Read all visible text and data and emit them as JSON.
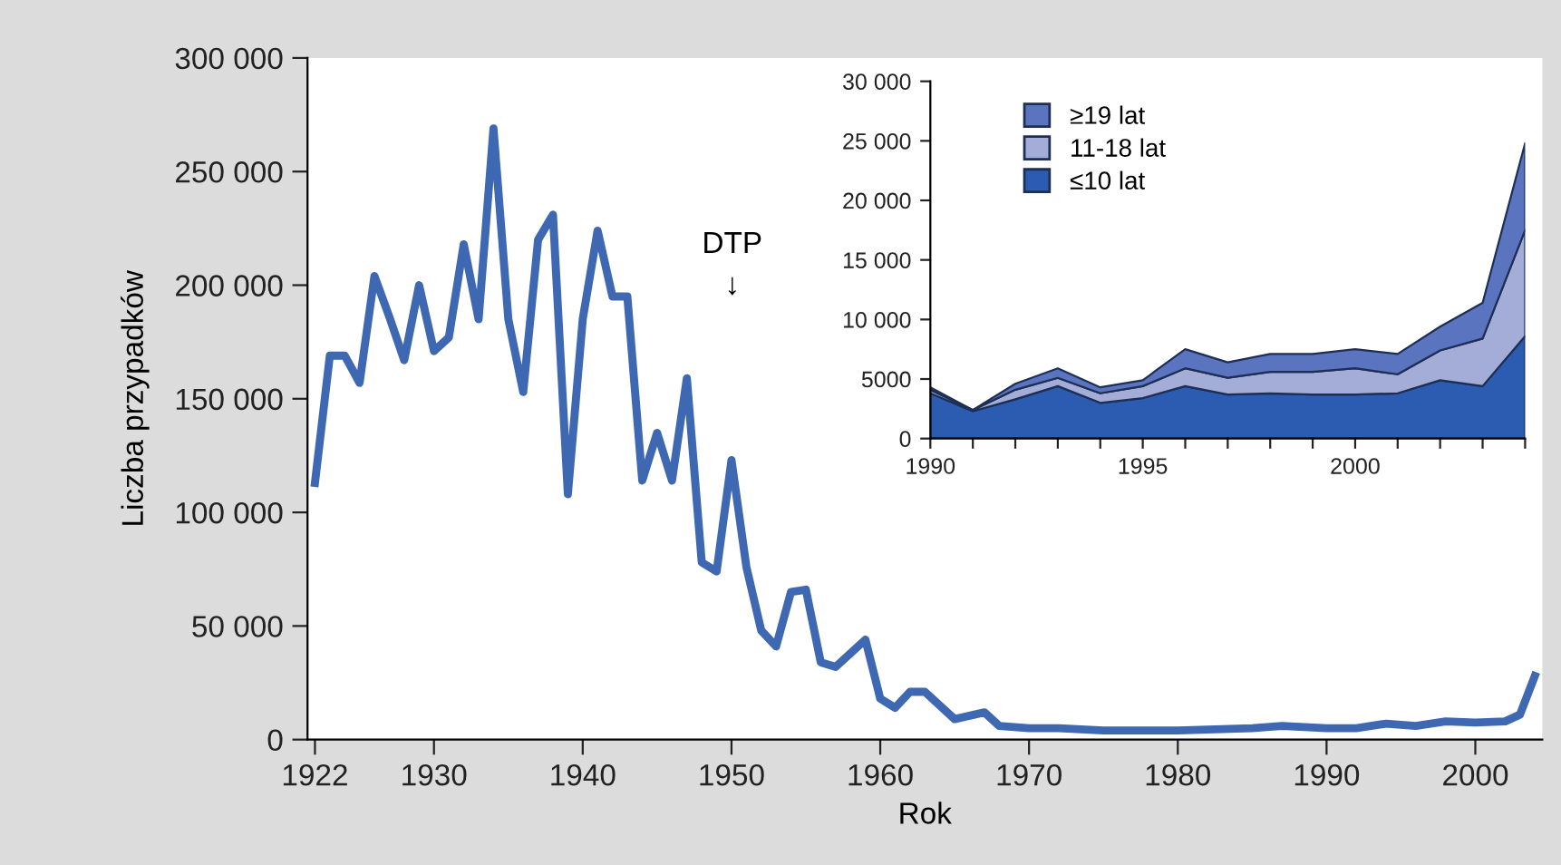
{
  "chart_data": [
    {
      "type": "line",
      "xlabel": "Rok",
      "ylabel": "Liczba przypadków",
      "grid": false,
      "legend": false,
      "marker": "none",
      "line_style": "solid",
      "xlim": [
        1921.5,
        2004.5
      ],
      "xticks": [
        1922,
        1930,
        1940,
        1950,
        1960,
        1970,
        1980,
        1990,
        2000
      ],
      "ylim": [
        0,
        300000
      ],
      "yticks": [
        {
          "value": 0,
          "label": "0"
        },
        {
          "value": 50000,
          "label": "50 000"
        },
        {
          "value": 100000,
          "label": "100 000"
        },
        {
          "value": 150000,
          "label": "150 000"
        },
        {
          "value": 200000,
          "label": "200 000"
        },
        {
          "value": 250000,
          "label": "250 000"
        },
        {
          "value": 300000,
          "label": "300 000"
        }
      ],
      "annotations": [
        "DTP\n↓"
      ],
      "series": [
        {
          "color": "#3f68b2",
          "x": [
            1922,
            1923,
            1924,
            1925,
            1926,
            1927,
            1928,
            1929,
            1930,
            1931,
            1932,
            1933,
            1934,
            1935,
            1936,
            1937,
            1938,
            1939,
            1940,
            1941,
            1942,
            1943,
            1944,
            1945,
            1946,
            1947,
            1948,
            1949,
            1950,
            1951,
            1952,
            1953,
            1954,
            1955,
            1956,
            1957,
            1959,
            1960,
            1961,
            1962,
            1963,
            1965,
            1967,
            1968,
            1970,
            1972,
            1975,
            1980,
            1985,
            1987,
            1990,
            1992,
            1994,
            1996,
            1998,
            2000,
            2002,
            2003,
            2004
          ],
          "values": [
            113000,
            169000,
            169000,
            157000,
            204000,
            186000,
            167000,
            200000,
            171000,
            177000,
            218000,
            185000,
            269000,
            185000,
            153000,
            220000,
            231000,
            108000,
            185000,
            224000,
            195000,
            195000,
            114000,
            135000,
            114000,
            159000,
            78000,
            74000,
            123000,
            76000,
            48000,
            41000,
            65000,
            66000,
            34000,
            32000,
            44000,
            18000,
            14000,
            21000,
            21000,
            9000,
            12000,
            6000,
            5000,
            5000,
            4000,
            4000,
            5000,
            6000,
            5000,
            5000,
            7000,
            6000,
            8000,
            7500,
            8000,
            11000,
            28000
          ]
        }
      ]
    },
    {
      "type": "area",
      "stacked": true,
      "grid": false,
      "legend": "top left",
      "x": [
        1990,
        1991,
        1992,
        1993,
        1994,
        1995,
        1996,
        1997,
        1998,
        1999,
        2000,
        2001,
        2002,
        2003,
        2004
      ],
      "xlim": [
        1990,
        2004
      ],
      "xticks": [
        1990,
        {
          "value": 1991,
          "label": null
        },
        {
          "value": 1992,
          "label": null
        },
        {
          "value": 1993,
          "label": null
        },
        {
          "value": 1994,
          "label": null
        },
        1995,
        {
          "value": 1996,
          "label": null
        },
        {
          "value": 1997,
          "label": null
        },
        {
          "value": 1998,
          "label": null
        },
        {
          "value": 1999,
          "label": null
        },
        2000,
        {
          "value": 2001,
          "label": null
        },
        {
          "value": 2002,
          "label": null
        },
        {
          "value": 2003,
          "label": null
        },
        {
          "value": 2004,
          "label": null
        }
      ],
      "ylim": [
        0,
        30000
      ],
      "yticks": [
        {
          "value": 0,
          "label": "0"
        },
        {
          "value": 5000,
          "label": "5000"
        },
        {
          "value": 10000,
          "label": "10 000"
        },
        {
          "value": 15000,
          "label": "15 000"
        },
        {
          "value": 20000,
          "label": "20 000"
        },
        {
          "value": 25000,
          "label": "25 000"
        },
        {
          "value": 30000,
          "label": "30 000"
        }
      ],
      "series": [
        {
          "name": "≤10 lat",
          "color": "#2b5cb2",
          "values": [
            3800,
            2300,
            3300,
            4400,
            3000,
            3400,
            4400,
            3700,
            3800,
            3700,
            3700,
            3800,
            4900,
            4400,
            8600
          ]
        },
        {
          "name": "11-18 lat",
          "color": "#a4acd8",
          "values": [
            300,
            100,
            800,
            700,
            800,
            1000,
            1500,
            1400,
            1800,
            1900,
            2200,
            1600,
            2500,
            4000,
            8900
          ]
        },
        {
          "name": "≥19 lat",
          "color": "#5a74c0",
          "values": [
            200,
            0,
            500,
            800,
            500,
            500,
            1600,
            1300,
            1500,
            1500,
            1600,
            1700,
            2000,
            3000,
            7300
          ]
        }
      ]
    }
  ]
}
